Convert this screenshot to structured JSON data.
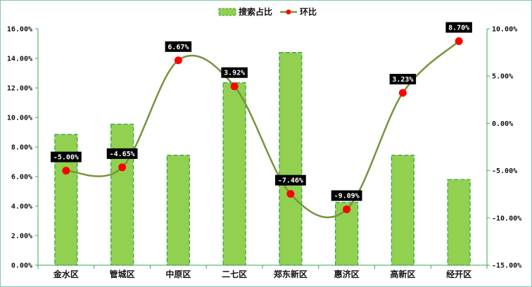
{
  "chart_data": {
    "type": "bar",
    "categories": [
      "金水区",
      "管城区",
      "中原区",
      "二七区",
      "郑东新区",
      "惠济区",
      "高新区",
      "经开区"
    ],
    "series": [
      {
        "name": "搜索占比",
        "type": "bar",
        "axis": "left",
        "values": [
          8.85,
          9.55,
          7.45,
          12.35,
          14.4,
          4.25,
          7.45,
          5.8
        ],
        "color": "#92d050",
        "edge_color": "#2ea14a"
      },
      {
        "name": "环比",
        "type": "line",
        "axis": "right",
        "values": [
          -5.0,
          -4.65,
          6.67,
          3.92,
          -7.46,
          -9.09,
          3.23,
          8.7
        ],
        "labels": [
          "-5.00%",
          "-4.65%",
          "6.67%",
          "3.92%",
          "-7.46%",
          "-9.09%",
          "3.23%",
          "8.70%"
        ],
        "color": "#77933c",
        "marker_color": "#ff0000"
      }
    ],
    "y_left": {
      "range": [
        0,
        16
      ],
      "ticks": [
        "0.00%",
        "2.00%",
        "4.00%",
        "6.00%",
        "8.00%",
        "10.00%",
        "12.00%",
        "14.00%",
        "16.00%"
      ]
    },
    "y_right": {
      "range": [
        -15,
        10
      ],
      "ticks": [
        "-15.00%",
        "-10.00%",
        "-5.00%",
        "0.00%",
        "5.00%",
        "10.00%"
      ]
    },
    "legend": {
      "position": "top-center"
    },
    "grid": false
  }
}
